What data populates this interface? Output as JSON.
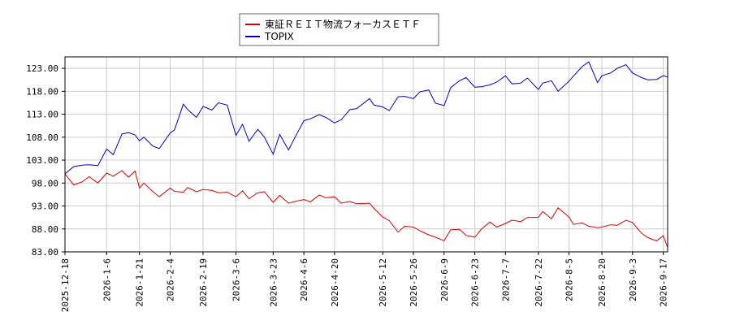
{
  "chart_data": {
    "type": "line",
    "title": "",
    "xlabel": "",
    "ylabel": "",
    "ylim": [
      83.0,
      125.5
    ],
    "xlim": [
      "2025-12-18",
      "2026-09-19"
    ],
    "grid": true,
    "legend_position": "top-center",
    "y_ticks": [
      83.0,
      88.0,
      93.0,
      98.0,
      103.0,
      108.0,
      113.0,
      118.0,
      123.0
    ],
    "y_tick_labels": [
      "83.00",
      "88.00",
      "93.00",
      "98.00",
      "103.00",
      "108.00",
      "113.00",
      "118.00",
      "123.00"
    ],
    "x_ticks": [
      "2025-12-18",
      "2026-01-06",
      "2026-01-21",
      "2026-02-04",
      "2026-02-19",
      "2026-03-06",
      "2026-03-23",
      "2026-04-06",
      "2026-04-20",
      "2026-05-12",
      "2026-05-26",
      "2026-06-09",
      "2026-06-23",
      "2026-07-07",
      "2026-07-22",
      "2026-08-05",
      "2026-08-20",
      "2026-09-03",
      "2026-09-17"
    ],
    "x_tick_labels": [
      "2025-12-18",
      "2026-1-6",
      "2026-1-21",
      "2026-2-4",
      "2026-2-19",
      "2026-3-6",
      "2026-3-23",
      "2026-4-6",
      "2026-4-20",
      "2026-5-12",
      "2026-5-26",
      "2026-6-9",
      "2026-6-23",
      "2026-7-7",
      "2026-7-22",
      "2026-8-5",
      "2026-8-20",
      "2026-9-3",
      "2026-9-17"
    ],
    "series": [
      {
        "name": "東証ＲＥＩＴ物流フォーカスＥＴＦ",
        "color": "#dd0000",
        "points": [
          [
            "2025-12-18",
            100.0
          ],
          [
            "2025-12-22",
            97.6
          ],
          [
            "2025-12-26",
            98.3
          ],
          [
            "2025-12-29",
            99.4
          ],
          [
            "2026-01-02",
            98.0
          ],
          [
            "2026-01-06",
            100.2
          ],
          [
            "2026-01-09",
            99.5
          ],
          [
            "2026-01-13",
            100.7
          ],
          [
            "2026-01-16",
            99.3
          ],
          [
            "2026-01-19",
            100.6
          ],
          [
            "2026-01-21",
            96.9
          ],
          [
            "2026-01-23",
            98.0
          ],
          [
            "2026-01-27",
            96.2
          ],
          [
            "2026-01-30",
            95.0
          ],
          [
            "2026-02-04",
            96.9
          ],
          [
            "2026-02-06",
            96.2
          ],
          [
            "2026-02-10",
            96.0
          ],
          [
            "2026-02-12",
            97.0
          ],
          [
            "2026-02-16",
            96.1
          ],
          [
            "2026-02-19",
            96.6
          ],
          [
            "2026-02-23",
            96.4
          ],
          [
            "2026-02-26",
            95.9
          ],
          [
            "2026-03-02",
            96.0
          ],
          [
            "2026-03-06",
            95.0
          ],
          [
            "2026-03-09",
            96.3
          ],
          [
            "2026-03-12",
            94.6
          ],
          [
            "2026-03-16",
            95.9
          ],
          [
            "2026-03-19",
            96.1
          ],
          [
            "2026-03-23",
            93.8
          ],
          [
            "2026-03-26",
            95.3
          ],
          [
            "2026-03-30",
            93.6
          ],
          [
            "2026-04-02",
            94.0
          ],
          [
            "2026-04-06",
            94.4
          ],
          [
            "2026-04-09",
            93.9
          ],
          [
            "2026-04-13",
            95.4
          ],
          [
            "2026-04-16",
            94.8
          ],
          [
            "2026-04-20",
            95.0
          ],
          [
            "2026-04-23",
            93.6
          ],
          [
            "2026-04-27",
            94.0
          ],
          [
            "2026-04-30",
            93.5
          ],
          [
            "2026-05-06",
            93.6
          ],
          [
            "2026-05-08",
            92.5
          ],
          [
            "2026-05-12",
            90.6
          ],
          [
            "2026-05-15",
            89.8
          ],
          [
            "2026-05-19",
            87.3
          ],
          [
            "2026-05-22",
            88.6
          ],
          [
            "2026-05-26",
            88.4
          ],
          [
            "2026-05-29",
            87.6
          ],
          [
            "2026-06-02",
            86.7
          ],
          [
            "2026-06-05",
            86.2
          ],
          [
            "2026-06-09",
            85.4
          ],
          [
            "2026-06-12",
            87.8
          ],
          [
            "2026-06-16",
            87.9
          ],
          [
            "2026-06-19",
            86.6
          ],
          [
            "2026-06-23",
            86.2
          ],
          [
            "2026-06-26",
            88.0
          ],
          [
            "2026-06-30",
            89.5
          ],
          [
            "2026-07-03",
            88.4
          ],
          [
            "2026-07-07",
            89.2
          ],
          [
            "2026-07-10",
            89.9
          ],
          [
            "2026-07-14",
            89.6
          ],
          [
            "2026-07-17",
            90.5
          ],
          [
            "2026-07-22",
            90.5
          ],
          [
            "2026-07-24",
            91.8
          ],
          [
            "2026-07-28",
            90.2
          ],
          [
            "2026-07-31",
            92.6
          ],
          [
            "2026-08-05",
            90.6
          ],
          [
            "2026-08-07",
            89.0
          ],
          [
            "2026-08-11",
            89.3
          ],
          [
            "2026-08-14",
            88.6
          ],
          [
            "2026-08-18",
            88.3
          ],
          [
            "2026-08-20",
            88.4
          ],
          [
            "2026-08-24",
            88.9
          ],
          [
            "2026-08-27",
            88.8
          ],
          [
            "2026-08-31",
            89.9
          ],
          [
            "2026-09-03",
            89.4
          ],
          [
            "2026-09-07",
            87.1
          ],
          [
            "2026-09-10",
            86.1
          ],
          [
            "2026-09-14",
            85.4
          ],
          [
            "2026-09-17",
            86.5
          ],
          [
            "2026-09-19",
            84.0
          ]
        ]
      },
      {
        "name": "TOPIX",
        "color": "#0000cc",
        "points": [
          [
            "2025-12-18",
            100.0
          ],
          [
            "2025-12-22",
            101.6
          ],
          [
            "2025-12-26",
            101.9
          ],
          [
            "2025-12-29",
            102.0
          ],
          [
            "2026-01-02",
            101.8
          ],
          [
            "2026-01-06",
            105.4
          ],
          [
            "2026-01-09",
            104.2
          ],
          [
            "2026-01-13",
            108.7
          ],
          [
            "2026-01-16",
            109.0
          ],
          [
            "2026-01-19",
            108.5
          ],
          [
            "2026-01-21",
            107.2
          ],
          [
            "2026-01-23",
            108.0
          ],
          [
            "2026-01-27",
            106.1
          ],
          [
            "2026-01-30",
            105.5
          ],
          [
            "2026-02-04",
            108.9
          ],
          [
            "2026-02-06",
            109.6
          ],
          [
            "2026-02-10",
            115.2
          ],
          [
            "2026-02-12",
            114.0
          ],
          [
            "2026-02-16",
            112.3
          ],
          [
            "2026-02-19",
            114.7
          ],
          [
            "2026-02-23",
            113.9
          ],
          [
            "2026-02-26",
            115.5
          ],
          [
            "2026-03-02",
            115.0
          ],
          [
            "2026-03-06",
            108.4
          ],
          [
            "2026-03-09",
            110.8
          ],
          [
            "2026-03-12",
            107.1
          ],
          [
            "2026-03-16",
            109.7
          ],
          [
            "2026-03-19",
            108.0
          ],
          [
            "2026-03-23",
            104.3
          ],
          [
            "2026-03-26",
            108.6
          ],
          [
            "2026-03-30",
            105.2
          ],
          [
            "2026-04-02",
            108.0
          ],
          [
            "2026-04-06",
            111.6
          ],
          [
            "2026-04-09",
            112.0
          ],
          [
            "2026-04-13",
            112.9
          ],
          [
            "2026-04-16",
            112.3
          ],
          [
            "2026-04-20",
            111.1
          ],
          [
            "2026-04-23",
            111.8
          ],
          [
            "2026-04-27",
            114.0
          ],
          [
            "2026-04-30",
            114.2
          ],
          [
            "2026-05-06",
            116.4
          ],
          [
            "2026-05-08",
            115.0
          ],
          [
            "2026-05-12",
            114.6
          ],
          [
            "2026-05-15",
            113.8
          ],
          [
            "2026-05-19",
            116.8
          ],
          [
            "2026-05-22",
            116.9
          ],
          [
            "2026-05-26",
            116.4
          ],
          [
            "2026-05-29",
            117.9
          ],
          [
            "2026-06-02",
            118.3
          ],
          [
            "2026-06-05",
            115.4
          ],
          [
            "2026-06-09",
            114.9
          ],
          [
            "2026-06-12",
            118.8
          ],
          [
            "2026-06-16",
            120.3
          ],
          [
            "2026-06-19",
            121.0
          ],
          [
            "2026-06-23",
            118.9
          ],
          [
            "2026-06-26",
            119.0
          ],
          [
            "2026-06-30",
            119.4
          ],
          [
            "2026-07-03",
            120.0
          ],
          [
            "2026-07-07",
            121.4
          ],
          [
            "2026-07-10",
            119.6
          ],
          [
            "2026-07-14",
            119.8
          ],
          [
            "2026-07-17",
            120.9
          ],
          [
            "2026-07-22",
            118.4
          ],
          [
            "2026-07-24",
            119.8
          ],
          [
            "2026-07-28",
            120.3
          ],
          [
            "2026-07-31",
            118.0
          ],
          [
            "2026-08-05",
            120.2
          ],
          [
            "2026-08-07",
            121.3
          ],
          [
            "2026-08-11",
            123.4
          ],
          [
            "2026-08-14",
            124.4
          ],
          [
            "2026-08-18",
            119.9
          ],
          [
            "2026-08-20",
            121.4
          ],
          [
            "2026-08-24",
            122.0
          ],
          [
            "2026-08-27",
            123.0
          ],
          [
            "2026-08-31",
            123.8
          ],
          [
            "2026-09-03",
            122.0
          ],
          [
            "2026-09-07",
            121.0
          ],
          [
            "2026-09-10",
            120.5
          ],
          [
            "2026-09-14",
            120.6
          ],
          [
            "2026-09-17",
            121.4
          ],
          [
            "2026-09-19",
            121.1
          ]
        ]
      }
    ]
  }
}
